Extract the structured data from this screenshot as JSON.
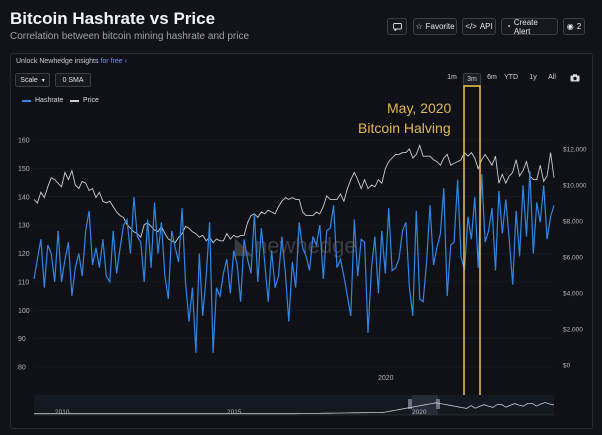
{
  "header": {
    "title": "Bitcoin Hashrate vs Price",
    "subtitle": "Correlation between bitcoin mining hashrate and price",
    "buttons": {
      "comment_icon": "chat-icon",
      "favorite": "Favorite",
      "api": "API",
      "alert": "Create Alert",
      "views": "2"
    }
  },
  "toolbar": {
    "unlock_text": "Unlock Newhedge insights",
    "unlock_link": "for free",
    "scale": "Scale",
    "sma": "0 SMA",
    "ranges": [
      "1m",
      "3m",
      "6m",
      "YTD",
      "1y",
      "All"
    ],
    "active_range": "3m"
  },
  "watermark": "newhedge",
  "annotation": {
    "line1": "May, 2020",
    "line2": "Bitcoin Halving",
    "color": "#e3b84a"
  },
  "colors": {
    "hashrate": "#2f86e6",
    "price": "#c9ccd2",
    "accent": "#6f8cff"
  },
  "chart_data": {
    "type": "line",
    "series": [
      {
        "name": "Hashrate",
        "axis": "left",
        "values": [
          111,
          118,
          125,
          108,
          123,
          120,
          110,
          128,
          110,
          118,
          124,
          105,
          115,
          120,
          112,
          128,
          135,
          116,
          122,
          115,
          125,
          112,
          110,
          128,
          113,
          122,
          130,
          132,
          120,
          140,
          126,
          124,
          110,
          132,
          115,
          138,
          120,
          131,
          112,
          104,
          128,
          122,
          117,
          136,
          110,
          96,
          108,
          85,
          120,
          98,
          112,
          131,
          85,
          108,
          105,
          113,
          118,
          106,
          121,
          116,
          103,
          125,
          118,
          113,
          134,
          110,
          129,
          117,
          103,
          121,
          108,
          112,
          126,
          113,
          96,
          117,
          108,
          131,
          122,
          119,
          114,
          126,
          123,
          130,
          111,
          128,
          129,
          137,
          115,
          118,
          112,
          105,
          98,
          132,
          112,
          125,
          124,
          92,
          115,
          126,
          106,
          128,
          113,
          136,
          114,
          115,
          118,
          128,
          131,
          108,
          98,
          135,
          104,
          103,
          117,
          137,
          116,
          122,
          127,
          143,
          105,
          123,
          124,
          146,
          119,
          114,
          133,
          125,
          140,
          115,
          148,
          124,
          128,
          136,
          114,
          142,
          127,
          139,
          125,
          109,
          135,
          119,
          144,
          126,
          149,
          120,
          138,
          131,
          144,
          125,
          133,
          137
        ]
      },
      {
        "name": "Price",
        "axis": "right",
        "values": [
          9200,
          9000,
          9600,
          9300,
          9900,
          10400,
          10300,
          10100,
          9900,
          10700,
          10300,
          10800,
          10000,
          9800,
          10200,
          10100,
          9700,
          9800,
          9300,
          9600,
          9100,
          9000,
          9100,
          8800,
          8500,
          8300,
          8200,
          7800,
          7600,
          7400,
          7300,
          7100,
          7800,
          7900,
          7700,
          7500,
          7400,
          7700,
          7300,
          7000,
          6900,
          6800,
          7100,
          7300,
          7700,
          7600,
          7400,
          7300,
          7100,
          7200,
          6900,
          7100,
          6800,
          7000,
          6900,
          6900,
          7300,
          7000,
          7200,
          7100,
          7200,
          7200,
          7900,
          8300,
          8400,
          8200,
          8500,
          8400,
          8600,
          8500,
          8400,
          8800,
          9100,
          9300,
          9200,
          9300,
          9200,
          9200,
          8500,
          8300,
          8300,
          8300,
          8500,
          8400,
          8800,
          9400,
          9200,
          9200,
          9200,
          9500,
          9100,
          9800,
          10300,
          10700,
          10300,
          9800,
          10300,
          9800,
          10000,
          9900,
          10300,
          10100,
          10900,
          11300,
          11500,
          11700,
          11700,
          11800,
          11800,
          12000,
          11500,
          11700,
          12200,
          11600,
          11600,
          11600,
          11400,
          11300,
          11100,
          11500,
          11700,
          11100,
          11200,
          11300,
          11400,
          11800,
          11600,
          11800,
          11500,
          10900,
          11400,
          11700,
          11400,
          11100,
          11600,
          10100,
          10600,
          10100,
          10500,
          10700,
          11400,
          10500,
          10800,
          11300,
          10500,
          10300,
          10300,
          11100,
          10200,
          10500,
          11800,
          10400
        ]
      }
    ],
    "x_tick": "2020",
    "left_axis": {
      "ticks": [
        160,
        150,
        140,
        130,
        120,
        110,
        100,
        90,
        80
      ],
      "range": [
        75,
        162
      ]
    },
    "right_axis": {
      "ticks": [
        "$12,000",
        "$10,000",
        "$8,000",
        "$6,000",
        "$4,000",
        "$2,000",
        "$0"
      ],
      "range": [
        0,
        13000
      ]
    },
    "navigator": {
      "ticks": [
        "2010",
        "2015",
        "2020"
      ]
    },
    "legend_position": "top-left",
    "grid": "horizontal"
  }
}
